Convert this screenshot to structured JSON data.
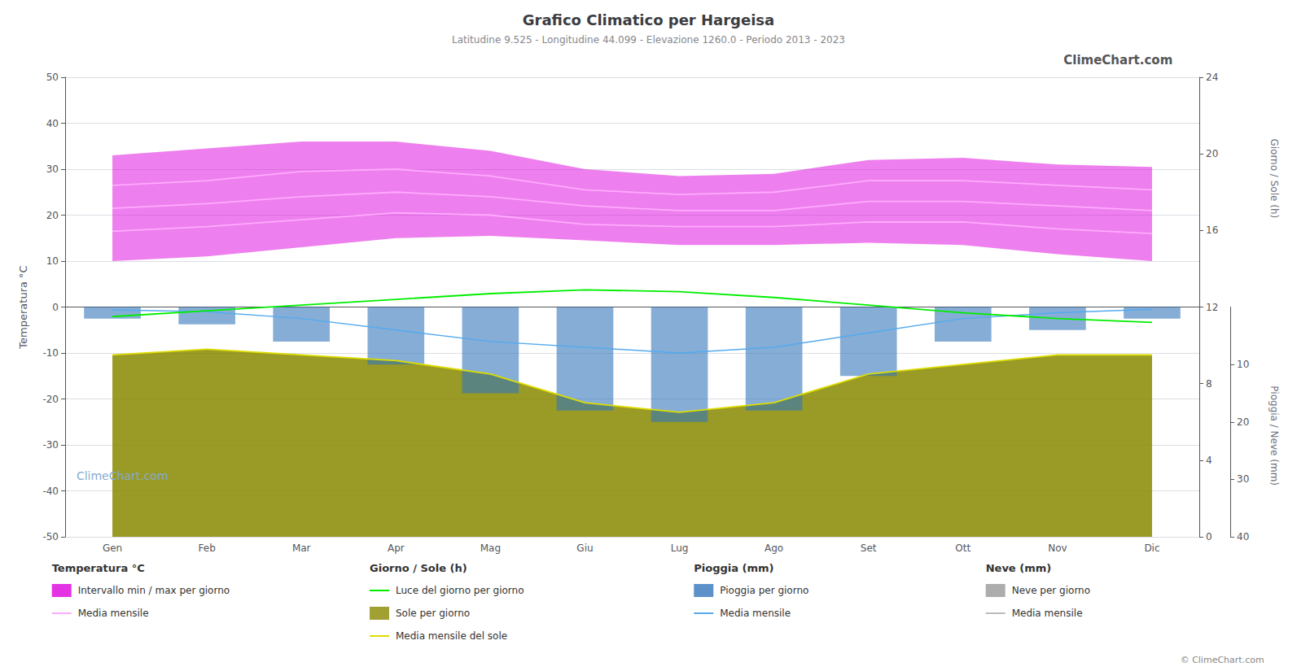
{
  "chart_data": {
    "type": "line",
    "title": "Grafico Climatico per Hargeisa",
    "subtitle": "Latitudine 9.525 - Longitudine 44.099 - Elevazione 1260.0 - Periodo 2013 - 2023",
    "categories": [
      "Gen",
      "Feb",
      "Mar",
      "Apr",
      "Mag",
      "Giu",
      "Lug",
      "Ago",
      "Set",
      "Ott",
      "Nov",
      "Dic"
    ],
    "ylabel": "Temperatura °C",
    "y2label": "Giorno / Sole (h)",
    "y3label": "Pioggia / Neve (mm)",
    "ylim": [
      -50,
      50
    ],
    "yticks": [
      -50,
      -40,
      -30,
      -20,
      -10,
      0,
      10,
      20,
      30,
      40,
      50
    ],
    "y2lim": [
      0,
      24
    ],
    "y2ticks": [
      0,
      4,
      8,
      12,
      16,
      20,
      24
    ],
    "y3lim": [
      0,
      40
    ],
    "y3ticks": [
      10,
      20,
      30,
      40
    ],
    "grid": true,
    "series": [
      {
        "name": "Sole per giorno",
        "type": "area",
        "axis": "y2",
        "color": "#888800",
        "values": [
          9.5,
          9.8,
          9.5,
          9.2,
          8.5,
          7.0,
          6.5,
          7.0,
          8.5,
          9.0,
          9.5,
          9.5
        ]
      },
      {
        "name": "Intervallo min / max per giorno",
        "type": "range",
        "color": "#dd00dd",
        "values": [
          [
            10.0,
            33.0
          ],
          [
            11.0,
            34.5
          ],
          [
            13.0,
            36.0
          ],
          [
            15.0,
            36.0
          ],
          [
            15.5,
            34.0
          ],
          [
            14.5,
            30.0
          ],
          [
            13.5,
            28.5
          ],
          [
            13.5,
            29.0
          ],
          [
            14.0,
            32.0
          ],
          [
            13.5,
            32.5
          ],
          [
            11.5,
            31.0
          ],
          [
            10.0,
            30.5
          ]
        ]
      },
      {
        "name": "Pioggia per giorno",
        "type": "bar",
        "axis": "y3",
        "color": "#3377bb",
        "values": [
          2.0,
          3.0,
          6.0,
          10.0,
          15.0,
          18.0,
          20.0,
          18.0,
          12.0,
          6.0,
          4.0,
          2.0
        ]
      },
      {
        "name": "Media mensile",
        "type": "line",
        "axis": "y3",
        "color": "#55aaee",
        "values": [
          0.5,
          0.8,
          2.0,
          4.0,
          6.0,
          7.0,
          8.0,
          7.0,
          4.5,
          2.0,
          1.0,
          0.4
        ]
      },
      {
        "name": "Luce del giorno per giorno",
        "type": "line",
        "axis": "y2",
        "color": "#00ee00",
        "values": [
          11.5,
          11.8,
          12.1,
          12.4,
          12.7,
          12.9,
          12.8,
          12.5,
          12.1,
          11.7,
          11.4,
          11.2
        ]
      },
      {
        "name": "Media mensile del sole",
        "type": "line",
        "axis": "y2",
        "color": "#dddd00",
        "values": [
          9.5,
          9.8,
          9.5,
          9.2,
          8.5,
          7.0,
          6.5,
          7.0,
          8.5,
          9.0,
          9.5,
          9.5
        ]
      },
      {
        "name": "Media mensile",
        "type": "line",
        "color": "#ffaaff",
        "values": [
          16.5,
          17.5,
          19.0,
          20.5,
          20.0,
          18.0,
          17.5,
          17.5,
          18.5,
          18.5,
          17.0,
          16.0
        ]
      },
      {
        "name": "Media mensile",
        "type": "line",
        "color": "#ffaaff",
        "values": [
          26.5,
          27.5,
          29.5,
          30.0,
          28.5,
          25.5,
          24.5,
          25.0,
          27.5,
          27.5,
          26.5,
          25.5
        ]
      },
      {
        "name": "Media mensile",
        "type": "line",
        "color": "#ffaaff",
        "values": [
          21.5,
          22.5,
          24.0,
          25.0,
          24.0,
          22.0,
          21.0,
          21.0,
          23.0,
          23.0,
          22.0,
          21.0
        ]
      }
    ],
    "legend_groups": [
      {
        "title": "Temperatura °C",
        "entries": [
          {
            "label": "Intervallo min / max per giorno",
            "color": "#dd00dd",
            "marker": "rect"
          },
          {
            "label": "Media mensile",
            "color": "#ffaaff",
            "marker": "line"
          }
        ]
      },
      {
        "title": "Giorno / Sole (h)",
        "entries": [
          {
            "label": "Luce del giorno per giorno",
            "color": "#00ee00",
            "marker": "line"
          },
          {
            "label": "Sole per giorno",
            "color": "#888800",
            "marker": "rect"
          },
          {
            "label": "Media mensile del sole",
            "color": "#dddd00",
            "marker": "line"
          }
        ]
      },
      {
        "title": "Pioggia (mm)",
        "entries": [
          {
            "label": "Pioggia per giorno",
            "color": "#3377bb",
            "marker": "rect"
          },
          {
            "label": "Media mensile",
            "color": "#55aaee",
            "marker": "line"
          }
        ]
      },
      {
        "title": "Neve (mm)",
        "entries": [
          {
            "label": "Neve per giorno",
            "color": "#999999",
            "marker": "rect"
          },
          {
            "label": "Media mensile",
            "color": "#bbbbbb",
            "marker": "line"
          }
        ]
      }
    ],
    "annotations": [
      {
        "text": "ClimeChart.com"
      },
      {
        "text": "ClimeChart.com"
      },
      {
        "text": "© ClimeChart.com"
      }
    ]
  }
}
